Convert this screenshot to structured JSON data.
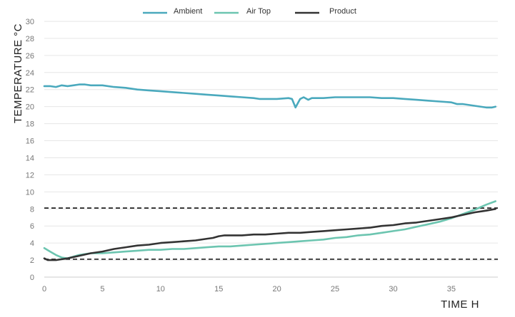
{
  "chart_data": {
    "type": "line",
    "title": "",
    "xlabel": "TIME H",
    "ylabel": "TEMPERATURE °C",
    "xlim": [
      0,
      39
    ],
    "ylim": [
      0,
      30
    ],
    "x_ticks": [
      0,
      5,
      10,
      15,
      20,
      25,
      30,
      35
    ],
    "y_ticks": [
      0,
      2,
      4,
      6,
      8,
      10,
      12,
      14,
      16,
      18,
      20,
      22,
      24,
      26,
      28,
      30
    ],
    "grid": "horizontal",
    "legend": "top-center",
    "reference_lines": [
      {
        "y": 8.1,
        "style": "dashed",
        "color": "#111111"
      },
      {
        "y": 2.1,
        "style": "dashed",
        "color": "#111111"
      }
    ],
    "series": [
      {
        "name": "Ambient",
        "color": "#4aa9bd",
        "points": [
          [
            0,
            22.4
          ],
          [
            0.5,
            22.4
          ],
          [
            1,
            22.3
          ],
          [
            1.5,
            22.5
          ],
          [
            2,
            22.4
          ],
          [
            2.5,
            22.5
          ],
          [
            3,
            22.6
          ],
          [
            3.5,
            22.6
          ],
          [
            4,
            22.5
          ],
          [
            5,
            22.5
          ],
          [
            6,
            22.3
          ],
          [
            7,
            22.2
          ],
          [
            8,
            22.0
          ],
          [
            9,
            21.9
          ],
          [
            10,
            21.8
          ],
          [
            11,
            21.7
          ],
          [
            12,
            21.6
          ],
          [
            13,
            21.5
          ],
          [
            14,
            21.4
          ],
          [
            15,
            21.3
          ],
          [
            16,
            21.2
          ],
          [
            17,
            21.1
          ],
          [
            18,
            21.0
          ],
          [
            18.5,
            20.9
          ],
          [
            19,
            20.9
          ],
          [
            20,
            20.9
          ],
          [
            21,
            21.0
          ],
          [
            21.3,
            20.9
          ],
          [
            21.6,
            19.9
          ],
          [
            22,
            20.9
          ],
          [
            22.3,
            21.1
          ],
          [
            22.7,
            20.8
          ],
          [
            23,
            21.0
          ],
          [
            24,
            21.0
          ],
          [
            25,
            21.1
          ],
          [
            26,
            21.1
          ],
          [
            27,
            21.1
          ],
          [
            28,
            21.1
          ],
          [
            29,
            21.0
          ],
          [
            30,
            21.0
          ],
          [
            31,
            20.9
          ],
          [
            32,
            20.8
          ],
          [
            33,
            20.7
          ],
          [
            34,
            20.6
          ],
          [
            35,
            20.5
          ],
          [
            35.5,
            20.3
          ],
          [
            36,
            20.3
          ],
          [
            37,
            20.1
          ],
          [
            38,
            19.9
          ],
          [
            38.5,
            19.9
          ],
          [
            38.8,
            20.0
          ]
        ]
      },
      {
        "name": "Air Top",
        "color": "#6cc5b0",
        "points": [
          [
            0,
            3.4
          ],
          [
            0.5,
            3.0
          ],
          [
            1,
            2.6
          ],
          [
            1.5,
            2.3
          ],
          [
            2,
            2.2
          ],
          [
            2.5,
            2.4
          ],
          [
            3,
            2.6
          ],
          [
            4,
            2.8
          ],
          [
            5,
            2.8
          ],
          [
            6,
            2.9
          ],
          [
            7,
            3.0
          ],
          [
            8,
            3.1
          ],
          [
            9,
            3.2
          ],
          [
            10,
            3.2
          ],
          [
            11,
            3.3
          ],
          [
            12,
            3.3
          ],
          [
            13,
            3.4
          ],
          [
            14,
            3.5
          ],
          [
            15,
            3.6
          ],
          [
            16,
            3.6
          ],
          [
            17,
            3.7
          ],
          [
            18,
            3.8
          ],
          [
            19,
            3.9
          ],
          [
            20,
            4.0
          ],
          [
            21,
            4.1
          ],
          [
            22,
            4.2
          ],
          [
            23,
            4.3
          ],
          [
            24,
            4.4
          ],
          [
            25,
            4.6
          ],
          [
            26,
            4.7
          ],
          [
            27,
            4.9
          ],
          [
            28,
            5.0
          ],
          [
            29,
            5.2
          ],
          [
            30,
            5.4
          ],
          [
            31,
            5.6
          ],
          [
            32,
            5.9
          ],
          [
            33,
            6.2
          ],
          [
            34,
            6.5
          ],
          [
            35,
            6.9
          ],
          [
            36,
            7.4
          ],
          [
            37,
            7.9
          ],
          [
            38,
            8.5
          ],
          [
            38.8,
            8.9
          ]
        ]
      },
      {
        "name": "Product",
        "color": "#333333",
        "points": [
          [
            0,
            2.2
          ],
          [
            0.3,
            2.0
          ],
          [
            1,
            2.0
          ],
          [
            1.5,
            2.1
          ],
          [
            2,
            2.2
          ],
          [
            3,
            2.5
          ],
          [
            4,
            2.8
          ],
          [
            5,
            3.0
          ],
          [
            6,
            3.3
          ],
          [
            7,
            3.5
          ],
          [
            8,
            3.7
          ],
          [
            9,
            3.8
          ],
          [
            10,
            4.0
          ],
          [
            11,
            4.1
          ],
          [
            12,
            4.2
          ],
          [
            13,
            4.3
          ],
          [
            14,
            4.5
          ],
          [
            14.5,
            4.6
          ],
          [
            15,
            4.8
          ],
          [
            15.5,
            4.9
          ],
          [
            16,
            4.9
          ],
          [
            17,
            4.9
          ],
          [
            18,
            5.0
          ],
          [
            19,
            5.0
          ],
          [
            20,
            5.1
          ],
          [
            21,
            5.2
          ],
          [
            22,
            5.2
          ],
          [
            23,
            5.3
          ],
          [
            24,
            5.4
          ],
          [
            25,
            5.5
          ],
          [
            26,
            5.6
          ],
          [
            27,
            5.7
          ],
          [
            28,
            5.8
          ],
          [
            29,
            6.0
          ],
          [
            30,
            6.1
          ],
          [
            31,
            6.3
          ],
          [
            32,
            6.4
          ],
          [
            33,
            6.6
          ],
          [
            34,
            6.8
          ],
          [
            35,
            7.0
          ],
          [
            36,
            7.3
          ],
          [
            37,
            7.6
          ],
          [
            38,
            7.8
          ],
          [
            38.8,
            8.0
          ]
        ]
      }
    ]
  }
}
